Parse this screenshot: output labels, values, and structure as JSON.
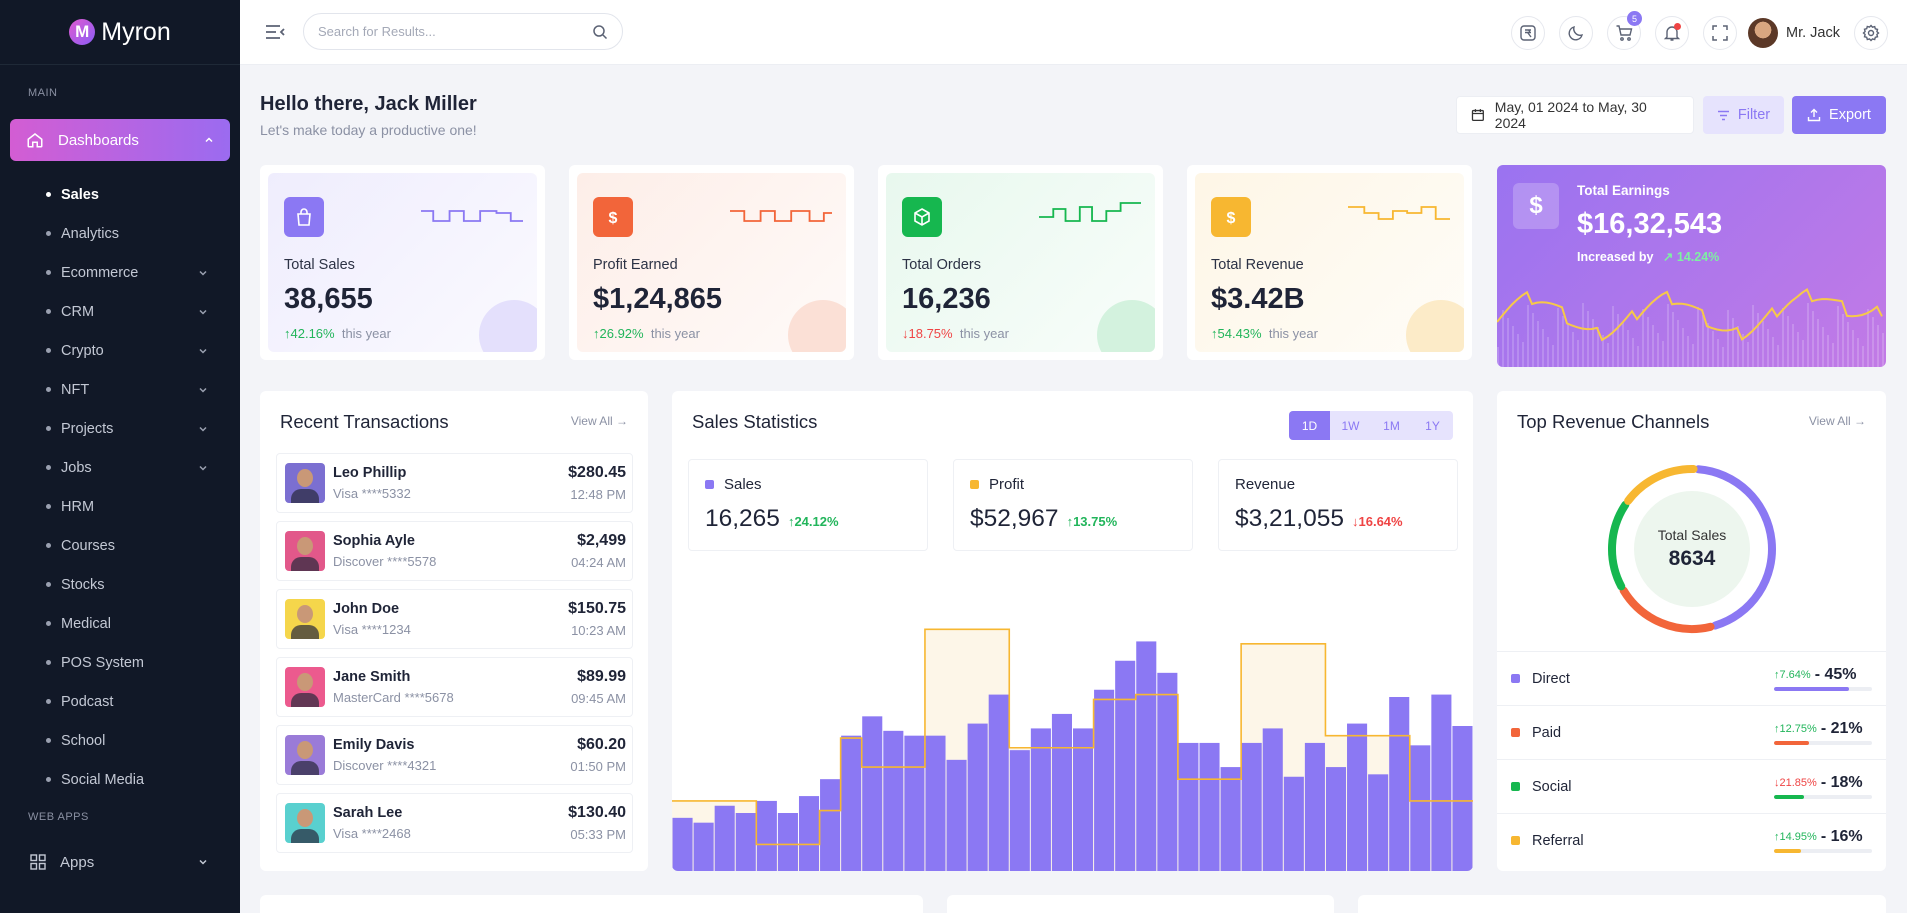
{
  "brand": {
    "name": "Myron",
    "logo_letter": "M"
  },
  "sidebar": {
    "section_main": "MAIN",
    "active": {
      "label": "Dashboards",
      "icon": "home-icon"
    },
    "items": [
      {
        "label": "Sales",
        "has_children": false,
        "current": true
      },
      {
        "label": "Analytics",
        "has_children": false
      },
      {
        "label": "Ecommerce",
        "has_children": true
      },
      {
        "label": "CRM",
        "has_children": true
      },
      {
        "label": "Crypto",
        "has_children": true
      },
      {
        "label": "NFT",
        "has_children": true
      },
      {
        "label": "Projects",
        "has_children": true
      },
      {
        "label": "Jobs",
        "has_children": true
      },
      {
        "label": "HRM",
        "has_children": false
      },
      {
        "label": "Courses",
        "has_children": false
      },
      {
        "label": "Stocks",
        "has_children": false
      },
      {
        "label": "Medical",
        "has_children": false
      },
      {
        "label": "POS System",
        "has_children": false
      },
      {
        "label": "Podcast",
        "has_children": false
      },
      {
        "label": "School",
        "has_children": false
      },
      {
        "label": "Social Media",
        "has_children": false
      }
    ],
    "section_web": "WEB APPS",
    "apps_label": "Apps"
  },
  "topbar": {
    "search_placeholder": "Search for Results...",
    "cart_count": "5",
    "user_name": "Mr. Jack"
  },
  "header": {
    "greeting": "Hello there, Jack Miller",
    "subtitle": "Let's make today a productive one!",
    "date_range": "May, 01 2024 to May, 30 2024",
    "filter_label": "Filter",
    "export_label": "Export"
  },
  "stats": [
    {
      "label": "Total Sales",
      "value": "38,655",
      "change": "42.16%",
      "direction": "up",
      "suffix": "this year",
      "color": "#8b78f3"
    },
    {
      "label": "Profit Earned",
      "value": "$1,24,865",
      "change": "26.92%",
      "direction": "up",
      "suffix": "this year",
      "color": "#f2653a"
    },
    {
      "label": "Total Orders",
      "value": "16,236",
      "change": "18.75%",
      "direction": "down",
      "suffix": "this year",
      "color": "#16b74f"
    },
    {
      "label": "Total Revenue",
      "value": "$3.42B",
      "change": "54.43%",
      "direction": "up",
      "suffix": "this year",
      "color": "#f7b731"
    }
  ],
  "earnings": {
    "title": "Total Earnings",
    "value": "$16,32,543",
    "sub_label": "Increased by",
    "change": "14.24%",
    "icon": "dollar-icon"
  },
  "transactions": {
    "title": "Recent Transactions",
    "view_all": "View All",
    "rows": [
      {
        "name": "Leo Phillip",
        "card": "Visa ****5332",
        "amount": "$280.45",
        "time": "12:48 PM",
        "bg": "#7b6fd1"
      },
      {
        "name": "Sophia Ayle",
        "card": "Discover ****5578",
        "amount": "$2,499",
        "time": "04:24 AM",
        "bg": "#e2588a"
      },
      {
        "name": "John Doe",
        "card": "Visa ****1234",
        "amount": "$150.75",
        "time": "10:23 AM",
        "bg": "#f5d64b"
      },
      {
        "name": "Jane Smith",
        "card": "MasterCard ****5678",
        "amount": "$89.99",
        "time": "09:45 AM",
        "bg": "#ec5a8e"
      },
      {
        "name": "Emily Davis",
        "card": "Discover ****4321",
        "amount": "$60.20",
        "time": "01:50 PM",
        "bg": "#9a7bd8"
      },
      {
        "name": "Sarah Lee",
        "card": "Visa ****2468",
        "amount": "$130.40",
        "time": "05:33 PM",
        "bg": "#59d0cf"
      }
    ]
  },
  "sales_statistics": {
    "title": "Sales Statistics",
    "tabs": [
      "1D",
      "1W",
      "1M",
      "1Y"
    ],
    "active_tab": "1D",
    "metrics": [
      {
        "label": "Sales",
        "value": "16,265",
        "change": "24.12%",
        "direction": "up",
        "color": "#8b78f3"
      },
      {
        "label": "Profit",
        "value": "$52,967",
        "change": "13.75%",
        "direction": "up",
        "color": "#f7b731"
      },
      {
        "label": "Revenue",
        "value": "$3,21,055",
        "change": "16.64%",
        "direction": "down",
        "color": ""
      }
    ]
  },
  "chart_data": {
    "type": "bar",
    "series": [
      {
        "values": [
          22,
          20,
          27,
          24,
          29,
          24,
          31,
          38,
          56,
          64,
          58,
          56,
          56,
          46,
          61,
          73,
          50,
          59,
          65,
          59,
          75,
          87,
          95,
          82,
          53,
          53,
          43,
          53,
          59,
          39,
          53,
          43,
          61,
          40,
          72,
          52,
          73,
          60
        ]
      },
      {
        "values": [
          29,
          29,
          29,
          29,
          11,
          11,
          11,
          25,
          55,
          43,
          43,
          43,
          100,
          100,
          100,
          100,
          51,
          51,
          51,
          51,
          71,
          71,
          73,
          73,
          38,
          38,
          38,
          94,
          94,
          94,
          94,
          56,
          56,
          56,
          56,
          29,
          29,
          29
        ]
      }
    ],
    "ylim": [
      0,
      120
    ]
  },
  "revenue_channels": {
    "title": "Top Revenue Channels",
    "view_all": "View All",
    "total_label": "Total Sales",
    "total_value": "8634",
    "channels": [
      {
        "name": "Direct",
        "change": "7.64%",
        "direction": "up",
        "pct": "- 45%",
        "share": 0.45,
        "color": "#8b78f3"
      },
      {
        "name": "Paid",
        "change": "12.75%",
        "direction": "up",
        "pct": "- 21%",
        "share": 0.21,
        "color": "#f2653a"
      },
      {
        "name": "Social",
        "change": "21.85%",
        "direction": "down",
        "pct": "- 18%",
        "share": 0.18,
        "color": "#16b74f"
      },
      {
        "name": "Referral",
        "change": "14.95%",
        "direction": "up",
        "pct": "- 16%",
        "share": 0.16,
        "color": "#f7b731"
      }
    ]
  }
}
